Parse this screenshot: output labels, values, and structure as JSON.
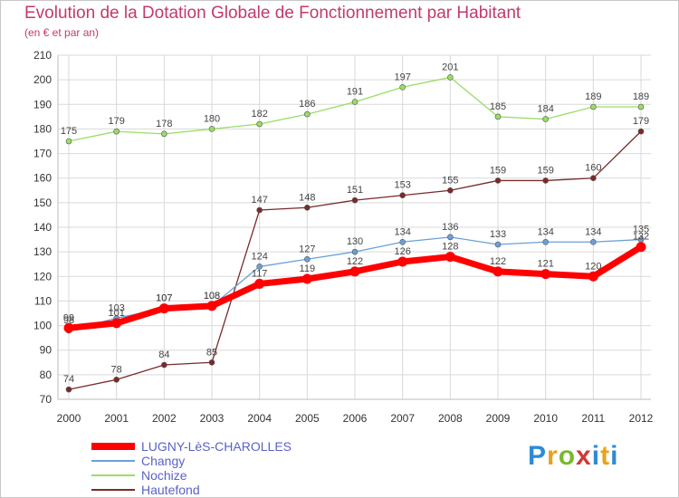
{
  "chart_data": {
    "type": "line",
    "title": "Evolution de la Dotation Globale de Fonctionnement par Habitant",
    "subtitle": "(en € et par an)",
    "xlabel": "",
    "ylabel": "",
    "x": [
      "2000",
      "2001",
      "2002",
      "2003",
      "2004",
      "2005",
      "2006",
      "2007",
      "2008",
      "2009",
      "2010",
      "2011",
      "2012"
    ],
    "ylim": [
      70,
      210
    ],
    "yticks": [
      70,
      80,
      90,
      100,
      110,
      120,
      130,
      140,
      150,
      160,
      170,
      180,
      190,
      200,
      210
    ],
    "grid": true,
    "legend_position": "bottom-left",
    "series": [
      {
        "name": "Nochize",
        "color": "#99dd66",
        "values": [
          175,
          179,
          178,
          180,
          182,
          186,
          191,
          197,
          201,
          185,
          184,
          189,
          189
        ]
      },
      {
        "name": "Hautefond",
        "color": "#7a2a2a",
        "values": [
          74,
          78,
          84,
          85,
          147,
          148,
          151,
          153,
          155,
          159,
          159,
          160,
          179
        ]
      },
      {
        "name": "Changy",
        "color": "#6aa0d8",
        "values": [
          98,
          103,
          107,
          108,
          124,
          127,
          130,
          134,
          136,
          133,
          134,
          134,
          135
        ]
      },
      {
        "name": "LUGNY-LèS-CHAROLLES",
        "color": "#ff0000",
        "values": [
          99,
          101,
          107,
          108,
          117,
          119,
          122,
          126,
          128,
          122,
          121,
          120,
          132
        ]
      }
    ],
    "legend_order": [
      "LUGNY-LèS-CHAROLLES",
      "Changy",
      "Nochize",
      "Hautefond"
    ]
  },
  "logo": {
    "text": "Proxiti"
  }
}
